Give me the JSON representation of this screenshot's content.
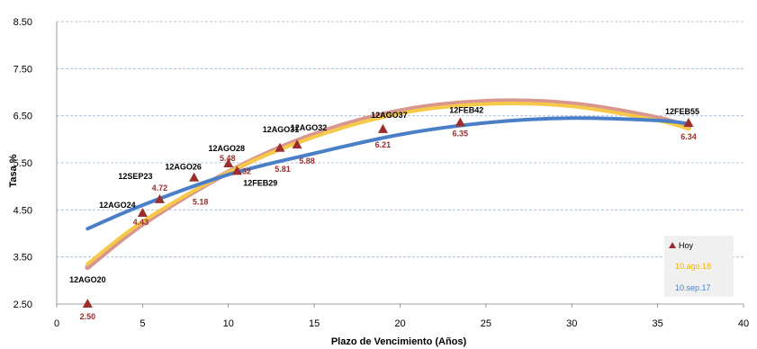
{
  "chart_data": {
    "type": "scatter",
    "title": "",
    "xlabel": "Plazo de Vencimiento  (Años)",
    "ylabel": "Tasa %",
    "xlim": [
      0,
      40
    ],
    "ylim": [
      2.5,
      8.5
    ],
    "x_ticks": [
      0,
      5,
      10,
      15,
      20,
      25,
      30,
      35,
      40
    ],
    "y_ticks": [
      2.5,
      3.5,
      4.5,
      5.5,
      6.5,
      7.5,
      8.5
    ],
    "x_tick_labels": [
      "0",
      "5",
      "10",
      "15",
      "20",
      "25",
      "30",
      "35",
      "40"
    ],
    "y_tick_labels": [
      "2.50",
      "3.50",
      "4.50",
      "5.50",
      "6.50",
      "7.50",
      "8.50"
    ],
    "grid": "horizontal dashed",
    "legend_position": "bottom-right",
    "colors": {
      "points": "#9b2d2d",
      "aug18": "#f7c948",
      "sep17": "#4a7fc8",
      "band": "#d9968f"
    },
    "series": [
      {
        "name": "Hoy",
        "kind": "points",
        "points": [
          {
            "x": 1.8,
            "y": 2.5,
            "bond": "12AGO20",
            "label": "2.50"
          },
          {
            "x": 5.0,
            "y": 4.43,
            "bond": "12AGO24",
            "label": "4.43"
          },
          {
            "x": 6.0,
            "y": 4.72,
            "bond": "12SEP23",
            "label": "4.72"
          },
          {
            "x": 8.0,
            "y": 5.18,
            "bond": "12AGO26",
            "label": "5.18"
          },
          {
            "x": 10.0,
            "y": 5.48,
            "bond": "12AGO28",
            "label": "5.48"
          },
          {
            "x": 10.5,
            "y": 5.32,
            "bond": "12FEB29",
            "label": "5.32"
          },
          {
            "x": 13.0,
            "y": 5.81,
            "bond": "12AGO31",
            "label": "5.81"
          },
          {
            "x": 14.0,
            "y": 5.88,
            "bond": "12AGO32",
            "label": "5.88"
          },
          {
            "x": 19.0,
            "y": 6.21,
            "bond": "12AGO37",
            "label": "6.21"
          },
          {
            "x": 23.5,
            "y": 6.35,
            "bond": "12FEB42",
            "label": "6.35"
          },
          {
            "x": 36.8,
            "y": 6.34,
            "bond": "12FEB55",
            "label": "6.34"
          }
        ]
      },
      {
        "name": "10.ago.18",
        "kind": "curve",
        "x": [
          1.8,
          5,
          10,
          15,
          20,
          25,
          30,
          35,
          36.8
        ],
        "values": [
          3.35,
          4.25,
          5.3,
          6.05,
          6.55,
          6.75,
          6.7,
          6.4,
          6.22
        ]
      },
      {
        "name": "10.sep.17",
        "kind": "curve",
        "x": [
          1.8,
          5,
          10,
          15,
          20,
          25,
          30,
          35,
          36.8
        ],
        "values": [
          4.1,
          4.6,
          5.25,
          5.7,
          6.1,
          6.35,
          6.45,
          6.4,
          6.33
        ]
      },
      {
        "kind": "band",
        "x": [
          1.8,
          5,
          10,
          15,
          20,
          25,
          30,
          35,
          36.8
        ],
        "values": [
          3.28,
          4.2,
          5.3,
          6.1,
          6.6,
          6.8,
          6.75,
          6.45,
          6.25
        ]
      }
    ]
  }
}
